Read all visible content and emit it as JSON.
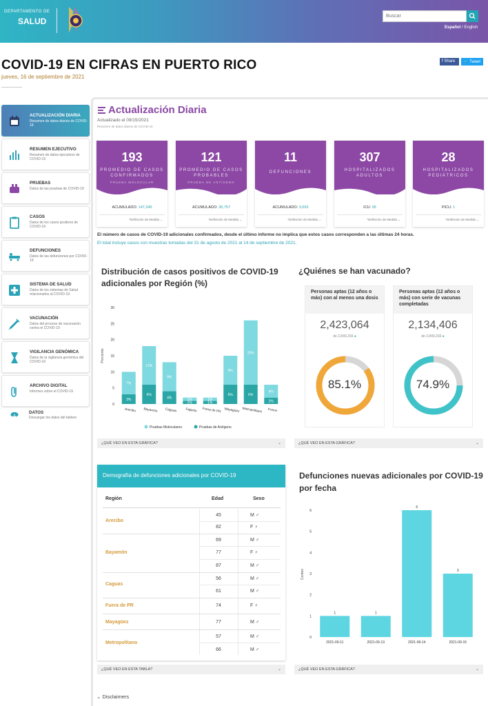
{
  "header": {
    "dept_label": "DEPARTAMENTO DE",
    "dept_name": "SALUD",
    "search_placeholder": "Buscar",
    "lang_es": "Español",
    "lang_sep": "/",
    "lang_en": "English",
    "colors": {
      "gradient_start": "#2fb5c4",
      "gradient_end": "#7a55a8"
    }
  },
  "page": {
    "title": "COVID-19 EN CIFRAS EN PUERTO RICO",
    "date": "jueves, 16 de septiembre de 2021",
    "share_label": "f Share",
    "tweet_label": "Tweet"
  },
  "sidebar": {
    "items": [
      {
        "title": "ACTUALIZACIÓN DIARIA",
        "desc": "Resumen de datos diarios de COVID-19",
        "icon": "calendar-icon",
        "active": true
      },
      {
        "title": "RESUMEN EJECUTIVO",
        "desc": "Resumen de datos ejecutivos de COVID-19",
        "icon": "bar-chart-icon"
      },
      {
        "title": "PRUEBAS",
        "desc": "Datos de las pruebas de COVID-19",
        "icon": "test-kit-icon"
      },
      {
        "title": "CASOS",
        "desc": "Datos de los casos positivos de COVID-19",
        "icon": "clipboard-icon"
      },
      {
        "title": "DEFUNCIONES",
        "desc": "Datos de las defunciones por COVID-19",
        "icon": "stretcher-icon"
      },
      {
        "title": "SISTEMA DE SALUD",
        "desc": "Datos de los sistemas de Salud relacionados al COVID-19",
        "icon": "medical-cross-icon"
      },
      {
        "title": "VACUNACIÓN",
        "desc": "Datos del proceso de vacunación contra el COVID-19",
        "icon": "syringe-icon"
      },
      {
        "title": "VIGILANCIA GENÓMICA",
        "desc": "Datos de la vigilancia genómica del COVID-19",
        "icon": "hourglass-icon"
      },
      {
        "title": "ARCHIVO DIGITAL",
        "desc": "Informes sobre el COVID-19",
        "icon": "paperclip-icon"
      },
      {
        "title": "DATOS",
        "desc": "Descargar los datos del tablero",
        "icon": "cloud-download-icon"
      }
    ]
  },
  "daily": {
    "title": "Actualización Diaria",
    "updated": "Actualizado el 09/15/2021",
    "summary": "Resumen de datos diarios de COVID-19",
    "cards": [
      {
        "value": "193",
        "label": "PROMEDIO DE CASOS CONFIRMADOS",
        "sub": "PRUEBA MOLECULAR",
        "acc_label": "ACUMULADO:",
        "acc_value": "147,246",
        "def": "*Definición de Medida ⌄"
      },
      {
        "value": "121",
        "label": "PROMEDIO DE CASOS PROBABLES",
        "sub": "PRUEBA DE ANTÍGENO",
        "acc_label": "ACUMULADO:",
        "acc_value": "30,757",
        "def": "*Definición de Medida ⌄"
      },
      {
        "value": "11",
        "label": "DEFUNCIONES",
        "sub": "",
        "acc_label": "ACUMULADO:",
        "acc_value": "3,003",
        "def": "*Definición de Medida ⌄"
      },
      {
        "value": "307",
        "label": "HOSPITALIZADOS ADULTOS",
        "sub": "",
        "acc_label": "ICU:",
        "acc_value": "95",
        "def": "*Definición de Medida ⌄"
      },
      {
        "value": "28",
        "label": "HOSPITALIZADOS PEDIÁTRICOS",
        "sub": "",
        "acc_label": "PICU:",
        "acc_value": "1",
        "def": "*Definición de Medida ⌄"
      }
    ],
    "note1": "El número de casos de COVID-19 adicionales confirmados, desde el último informe no implica que estos casos corresponden a las últimas 24 horas.",
    "note2": "El total incluye casos con muestras tomadas del 31 de agosto de 2021 al 14 de septiembre de 2021."
  },
  "region_chart": {
    "title": "Distribución de casos positivos de COVID-19 adicionales por Región (%)",
    "faq": "¿QUÉ VEO EN ESTA GRÁFICA?"
  },
  "vaccination": {
    "title": "¿Quiénes se han vacunado?",
    "faq": "¿QUÉ VEO EN ESTA GRÁFICA?",
    "panels": [
      {
        "head": "Personas aptas (12 años o más) con al menos una dosis",
        "num": "2,423,064",
        "den": "de 2,849,293",
        "pct_label": "85.1%",
        "pct": 85.1,
        "color": "#f0a73a"
      },
      {
        "head": "Personas aptas (12 años o más) con serie de vacunas completadas",
        "num": "2,134,406",
        "den": "de 2,849,293",
        "pct_label": "74.9%",
        "pct": 74.9,
        "color": "#3fc3c8"
      }
    ]
  },
  "demography": {
    "title": "Demografía de defunciones adicionales por COVID-19",
    "col_region": "Región",
    "col_age": "Edad",
    "col_sex": "Sexo",
    "faq": "¿QUÉ VEO EN ESTA TABLA?",
    "groups": [
      {
        "region": "Arecibo",
        "rows": [
          {
            "age": "45",
            "sex": "M ♂"
          },
          {
            "age": "82",
            "sex": "F ♀"
          }
        ]
      },
      {
        "region": "Bayamón",
        "rows": [
          {
            "age": "69",
            "sex": "M ♂"
          },
          {
            "age": "77",
            "sex": "F ♀"
          },
          {
            "age": "87",
            "sex": "M ♂"
          }
        ]
      },
      {
        "region": "Caguas",
        "rows": [
          {
            "age": "56",
            "sex": "M ♂"
          },
          {
            "age": "61",
            "sex": "M ♂"
          }
        ]
      },
      {
        "region": "Fuera de PR",
        "rows": [
          {
            "age": "74",
            "sex": "F ♀"
          }
        ]
      },
      {
        "region": "Mayagüez",
        "rows": [
          {
            "age": "77",
            "sex": "M ♂"
          }
        ]
      },
      {
        "region": "Metropolitano",
        "rows": [
          {
            "age": "57",
            "sex": "M ♂"
          },
          {
            "age": "66",
            "sex": "M ♂"
          }
        ]
      }
    ]
  },
  "deaths_chart": {
    "title": "Defunciones nuevas adicionales por COVID-19 por fecha",
    "faq": "¿QUÉ VEO EN ESTA GRÁFICA?"
  },
  "disclaimers": "Disclaimers",
  "chart_data": [
    {
      "type": "bar",
      "stacked": true,
      "categories": [
        "Arecibo",
        "Bayamón",
        "Caguas",
        "Fajardo",
        "Fuera de PR",
        "Mayagüez",
        "Metropolitano",
        "Ponce"
      ],
      "series": [
        {
          "name": "Pruebas de Antígeno",
          "color": "#2aa6a6",
          "values": [
            3,
            6,
            4,
            1,
            1,
            6,
            6,
            2
          ],
          "labels": [
            "3%",
            "6%",
            "4%",
            "1%",
            "1%",
            "6%",
            "6%",
            "2%"
          ]
        },
        {
          "name": "Pruebas Moleculares",
          "color": "#7fd9e0",
          "values": [
            7,
            12,
            9,
            1,
            1,
            9,
            20,
            4
          ],
          "labels": [
            "7%",
            "12%",
            "9%",
            "1%",
            "1%",
            "9%",
            "20%",
            "4%"
          ]
        }
      ],
      "ylabel": "Porciento",
      "ylim": [
        0,
        30
      ],
      "yticks": [
        "0",
        "5",
        "10",
        "15",
        "20",
        "25",
        "30"
      ],
      "legend": "bottom"
    },
    {
      "type": "bar",
      "categories": [
        "2021-09-11",
        "2021-09-13",
        "2021-09-14",
        "2021-09-15"
      ],
      "values": [
        1,
        1,
        6,
        3
      ],
      "labels": [
        "1",
        "1",
        "6",
        "3"
      ],
      "ylabel": "Conteo",
      "ylim": [
        0,
        6
      ],
      "yticks": [
        "0",
        "1",
        "2",
        "3",
        "4",
        "5",
        "6"
      ],
      "color": "#5ed6e2"
    }
  ]
}
